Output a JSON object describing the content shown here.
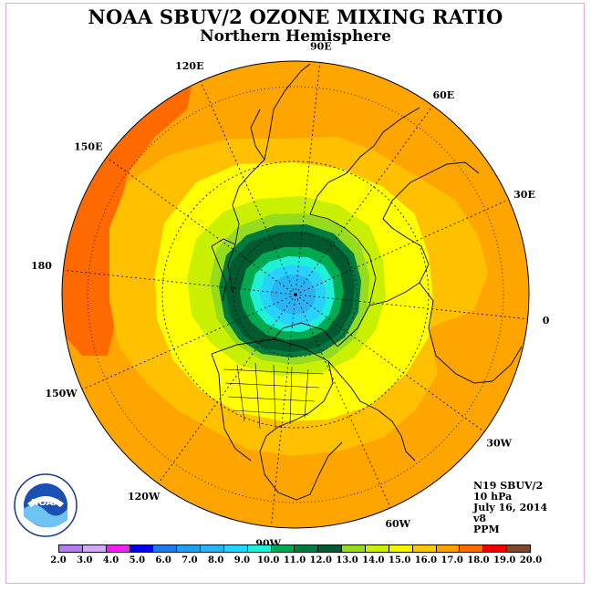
{
  "title": "NOAA SBUV/2 OZONE MIXING RATIO",
  "subtitle": "Northern Hemisphere",
  "longitude_labels": [
    "90E",
    "60E",
    "30E",
    "0",
    "30W",
    "60W",
    "90W",
    "120W",
    "150W",
    "180",
    "150E",
    "120E"
  ],
  "info": {
    "satellite": "N19 SBUV/2",
    "pressure": "10 hPa",
    "date": "July 16, 2014",
    "version": "v8",
    "units": "PPM"
  },
  "logo_text": "NOAA",
  "colorbar": {
    "ticks": [
      "2.0",
      "3.0",
      "4.0",
      "5.0",
      "6.0",
      "7.0",
      "8.0",
      "9.0",
      "10.0",
      "11.0",
      "12.0",
      "13.0",
      "14.0",
      "15.0",
      "16.0",
      "17.0",
      "18.0",
      "19.0",
      "20.0"
    ],
    "colors": [
      "#b57ef0",
      "#d6a8f5",
      "#f020f0",
      "#0000ee",
      "#1e78f0",
      "#1ea0f0",
      "#28b4f5",
      "#28d2ff",
      "#20f0d8",
      "#00aa50",
      "#007a3e",
      "#005a30",
      "#96dc1e",
      "#c8f000",
      "#f5f500",
      "#f5c800",
      "#ff9f00",
      "#ff6a00",
      "#ee0000",
      "#7a4a2a"
    ]
  },
  "map_colors": {
    "ocean_outer": "#ffa500",
    "band_16": "#ffc000",
    "band_15": "#ffff00",
    "band_14": "#c8f000",
    "band_13": "#96dc1e",
    "band_12": "#007a3e",
    "band_11": "#005a30",
    "band_10": "#00aa50",
    "band_9": "#20f0d8",
    "band_8": "#28d2ff",
    "band_7": "#28b4f5",
    "high_17": "#ff6a00"
  }
}
